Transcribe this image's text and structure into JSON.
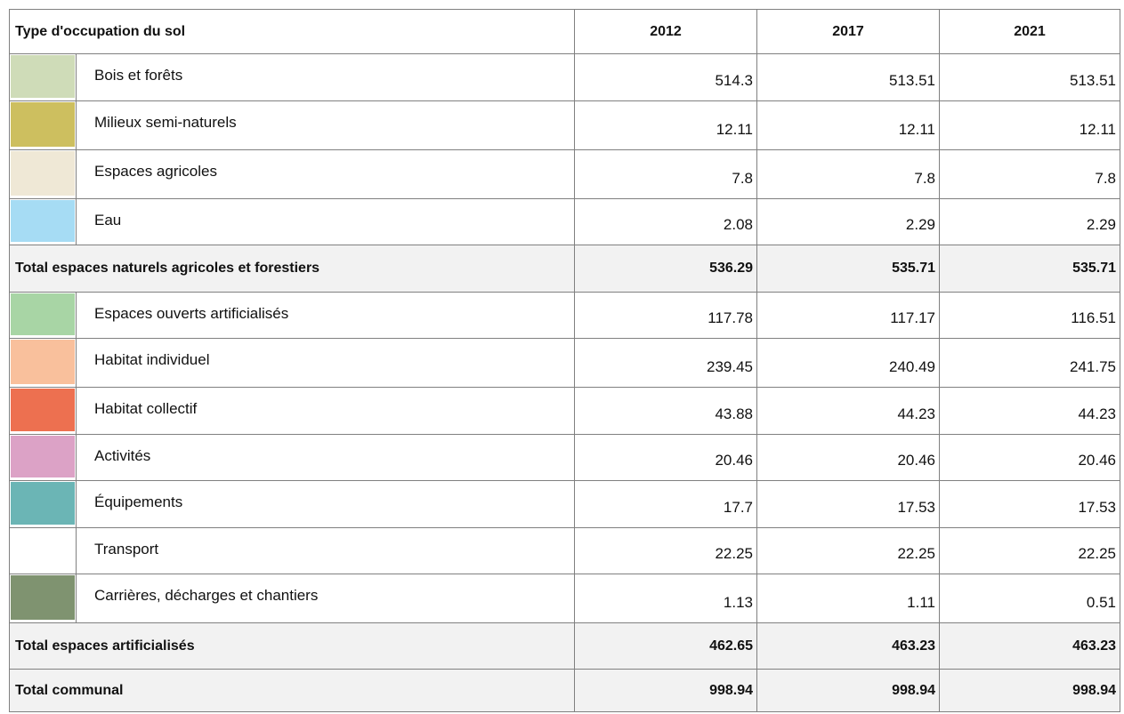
{
  "table": {
    "header": [
      "Type d'occupation du sol",
      "2012",
      "2017",
      "2021"
    ],
    "groups": [
      {
        "rows": [
          {
            "color": "#cfdcb8",
            "label": "Bois et forêts",
            "values": [
              514.3,
              513.51,
              513.51
            ]
          },
          {
            "color": "#cdbf5f",
            "label": "Milieux semi-naturels",
            "values": [
              12.11,
              12.11,
              12.11
            ]
          },
          {
            "color": "#efe8d6",
            "label": "Espaces agricoles",
            "values": [
              7.8,
              7.8,
              7.8
            ]
          },
          {
            "color": "#a6dcf4",
            "label": "Eau",
            "values": [
              2.08,
              2.29,
              2.29
            ]
          }
        ],
        "total": {
          "label": "Total espaces naturels agricoles et forestiers",
          "values": [
            536.29,
            535.71,
            535.71
          ]
        }
      },
      {
        "rows": [
          {
            "color": "#a8d5a5",
            "label": "Espaces ouverts artificialisés",
            "values": [
              117.78,
              117.17,
              116.51
            ]
          },
          {
            "color": "#f9c09c",
            "label": "Habitat individuel",
            "values": [
              239.45,
              240.49,
              241.75
            ]
          },
          {
            "color": "#ed7050",
            "label": "Habitat collectif",
            "values": [
              43.88,
              44.23,
              44.23
            ]
          },
          {
            "color": "#dca2c6",
            "label": "Activités",
            "values": [
              20.46,
              20.46,
              20.46
            ]
          },
          {
            "color": "#6bb5b5",
            "label": "Équipements",
            "values": [
              17.7,
              17.53,
              17.53
            ]
          },
          {
            "color": "#ffffff",
            "label": "Transport",
            "values": [
              22.25,
              22.25,
              22.25
            ]
          },
          {
            "color": "#7f9370",
            "label": "Carrières, décharges et chantiers",
            "values": [
              1.13,
              1.11,
              0.51
            ]
          }
        ],
        "total": {
          "label": "Total espaces artificialisés",
          "values": [
            462.65,
            463.23,
            463.23
          ]
        }
      }
    ],
    "grand_total": {
      "label": "Total communal",
      "values": [
        998.94,
        998.94,
        998.94
      ]
    }
  }
}
